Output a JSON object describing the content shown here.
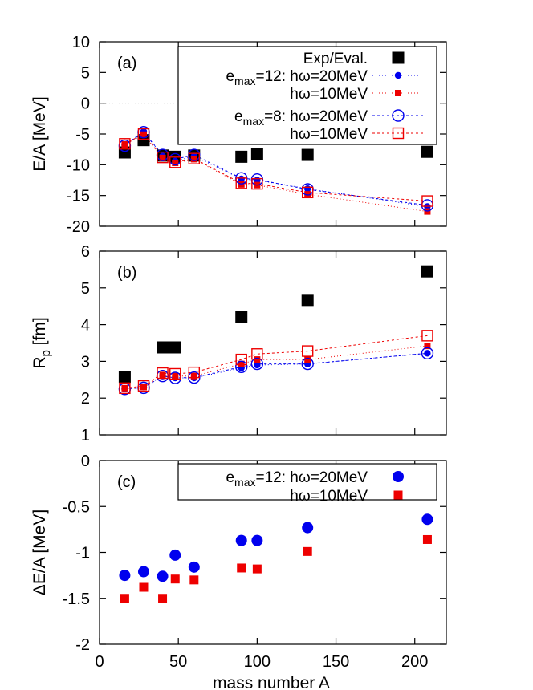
{
  "chart_data": [
    {
      "id": "a",
      "type": "scatter",
      "panel_label": "(a)",
      "ylabel": "E/A [MeV]",
      "ylim": [
        -20,
        10
      ],
      "yticks": [
        10,
        5,
        0,
        -5,
        -10,
        -15,
        -20
      ],
      "xlim": [
        0,
        220
      ],
      "zero_line": true,
      "legend_placement": "top-right",
      "series": [
        {
          "name": "Exp/Eval.",
          "marker": "square-filled-large",
          "color": "#000000",
          "line": false,
          "x": [
            16,
            28,
            40,
            48,
            60,
            90,
            100,
            132,
            208
          ],
          "y": [
            -8.0,
            -6.0,
            -8.5,
            -8.7,
            -8.5,
            -8.7,
            -8.3,
            -8.4,
            -7.9
          ]
        },
        {
          "name": "hω=20MeV",
          "legend_prefix": "e_max=12: ",
          "marker": "circle-filled-small",
          "color": "#0000ee",
          "line": true,
          "dash": "1,3",
          "x": [
            16,
            28,
            40,
            48,
            60,
            90,
            100,
            132,
            208
          ],
          "y": [
            -6.8,
            -4.6,
            -8.6,
            -9.4,
            -8.6,
            -12.3,
            -12.5,
            -13.9,
            -16.8
          ]
        },
        {
          "name": "hω=10MeV",
          "marker": "square-filled-small",
          "color": "#ee0000",
          "line": true,
          "dash": "1,3",
          "x": [
            16,
            28,
            40,
            48,
            60,
            90,
            100,
            132,
            208
          ],
          "y": [
            -6.7,
            -5.1,
            -8.9,
            -9.7,
            -9.1,
            -13.2,
            -13.3,
            -14.8,
            -17.6
          ]
        },
        {
          "name": "hω=20MeV",
          "legend_prefix": "e_max=8: ",
          "marker": "circle-open",
          "color": "#0000ee",
          "line": true,
          "dash": "3,3",
          "x": [
            16,
            28,
            40,
            48,
            60,
            90,
            100,
            132,
            208
          ],
          "y": [
            -6.9,
            -4.7,
            -8.4,
            -9.1,
            -8.4,
            -12.2,
            -12.4,
            -14.0,
            -16.6
          ]
        },
        {
          "name": "hω=10MeV",
          "marker": "square-open",
          "color": "#ee0000",
          "line": true,
          "dash": "3,3",
          "x": [
            16,
            28,
            40,
            48,
            60,
            90,
            100,
            132,
            208
          ],
          "y": [
            -6.6,
            -5.0,
            -8.8,
            -9.6,
            -9.0,
            -13.0,
            -13.1,
            -14.5,
            -15.9
          ]
        }
      ]
    },
    {
      "id": "b",
      "type": "scatter",
      "panel_label": "(b)",
      "ylabel": "R_p [fm]",
      "ylim": [
        1,
        6
      ],
      "yticks": [
        6,
        5,
        4,
        3,
        2,
        1
      ],
      "xlim": [
        0,
        220
      ],
      "series": [
        {
          "name": "Exp/Eval.",
          "marker": "square-filled-large",
          "color": "#000000",
          "line": false,
          "x": [
            16,
            40,
            48,
            90,
            132,
            208
          ],
          "y": [
            2.58,
            3.38,
            3.38,
            4.2,
            4.65,
            5.45
          ]
        },
        {
          "name": "hω=20MeV",
          "marker": "circle-filled-small",
          "color": "#0000ee",
          "line": true,
          "dash": "1,3",
          "x": [
            16,
            28,
            40,
            48,
            60,
            90,
            100,
            132,
            208
          ],
          "y": [
            2.25,
            2.3,
            2.6,
            2.55,
            2.55,
            2.82,
            2.9,
            2.93,
            3.22
          ]
        },
        {
          "name": "hω=10MeV",
          "marker": "square-filled-small",
          "color": "#ee0000",
          "line": true,
          "dash": "1,3",
          "x": [
            16,
            28,
            40,
            48,
            60,
            90,
            100,
            132,
            208
          ],
          "y": [
            2.27,
            2.3,
            2.63,
            2.6,
            2.6,
            2.93,
            3.05,
            3.05,
            3.42
          ]
        },
        {
          "name": "hω=20MeV",
          "marker": "circle-open",
          "color": "#0000ee",
          "line": true,
          "dash": "3,3",
          "x": [
            16,
            28,
            40,
            48,
            60,
            90,
            100,
            132,
            208
          ],
          "y": [
            2.25,
            2.28,
            2.6,
            2.55,
            2.56,
            2.85,
            2.93,
            2.93,
            3.22
          ]
        },
        {
          "name": "hω=10MeV",
          "marker": "square-open",
          "color": "#ee0000",
          "line": true,
          "dash": "3,3",
          "x": [
            16,
            28,
            40,
            48,
            60,
            90,
            100,
            132,
            208
          ],
          "y": [
            2.27,
            2.33,
            2.68,
            2.66,
            2.7,
            3.05,
            3.2,
            3.28,
            3.7
          ]
        }
      ]
    },
    {
      "id": "c",
      "type": "scatter",
      "panel_label": "(c)",
      "ylabel": "ΔE/A [MeV]",
      "xlabel": "mass number A",
      "ylim": [
        -2,
        0
      ],
      "yticks": [
        "0",
        "-0.5",
        "-1",
        "-1.5",
        "-2"
      ],
      "xlim": [
        0,
        220
      ],
      "xticks": [
        0,
        50,
        100,
        150,
        200
      ],
      "legend_placement": "top-right",
      "series": [
        {
          "name": "hω=20MeV",
          "legend_prefix": "e_max=12: ",
          "marker": "circle-filled-large",
          "color": "#0000ee",
          "line": false,
          "x": [
            16,
            28,
            40,
            48,
            60,
            90,
            100,
            132,
            208
          ],
          "y": [
            -1.25,
            -1.21,
            -1.26,
            -1.03,
            -1.16,
            -0.87,
            -0.87,
            -0.73,
            -0.64
          ]
        },
        {
          "name": "hω=10MeV",
          "marker": "square-filled-medium",
          "color": "#ee0000",
          "line": false,
          "x": [
            16,
            28,
            40,
            48,
            60,
            90,
            100,
            132,
            208
          ],
          "y": [
            -1.5,
            -1.38,
            -1.5,
            -1.29,
            -1.3,
            -1.17,
            -1.18,
            -0.99,
            -0.86
          ]
        }
      ]
    }
  ]
}
